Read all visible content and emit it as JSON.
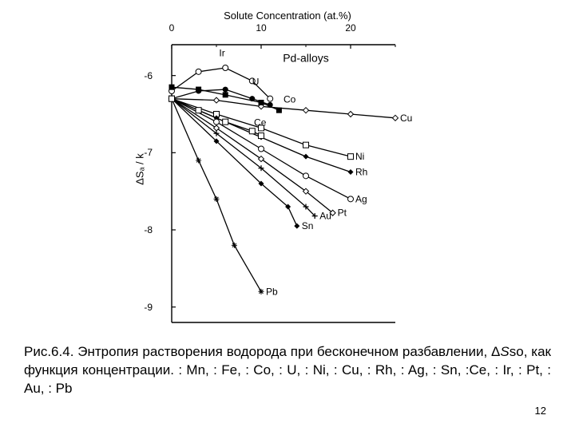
{
  "chart": {
    "type": "line",
    "x_title": "Solute Concentration (at.%)",
    "y_title": "ΔSₐ / k",
    "in_plot_label": "Pd-alloys",
    "xlim": [
      0,
      25
    ],
    "ylim": [
      -9.2,
      -5.6
    ],
    "x_ticks": [
      0,
      10,
      20
    ],
    "y_ticks": [
      -6,
      -7,
      -8,
      -9
    ],
    "background_color": "#ffffff",
    "axis_color": "#000000",
    "line_color": "#000000",
    "line_width": 1.3,
    "tick_len": 5,
    "label_fontsize": 12,
    "title_fontsize": 13,
    "series": [
      {
        "name": "Cu",
        "points": [
          [
            0,
            -6.3
          ],
          [
            5,
            -6.32
          ],
          [
            10,
            -6.4
          ],
          [
            15,
            -6.45
          ],
          [
            20,
            -6.5
          ],
          [
            25,
            -6.55
          ]
        ],
        "marker": "diamond-open",
        "label_right": "Cu"
      },
      {
        "name": "Ni",
        "points": [
          [
            0,
            -6.3
          ],
          [
            5,
            -6.5
          ],
          [
            10,
            -6.68
          ],
          [
            15,
            -6.9
          ],
          [
            20,
            -7.05
          ]
        ],
        "marker": "square-open",
        "label_right": "Ni"
      },
      {
        "name": "Rh",
        "points": [
          [
            0,
            -6.3
          ],
          [
            5,
            -6.55
          ],
          [
            10,
            -6.8
          ],
          [
            15,
            -7.05
          ],
          [
            20,
            -7.25
          ]
        ],
        "marker": "diamond-filled",
        "label_right": "Rh"
      },
      {
        "name": "Ag",
        "points": [
          [
            0,
            -6.3
          ],
          [
            5,
            -6.6
          ],
          [
            10,
            -6.95
          ],
          [
            15,
            -7.3
          ],
          [
            20,
            -7.6
          ]
        ],
        "marker": "circle-open",
        "label_right": "Ag"
      },
      {
        "name": "Pt",
        "points": [
          [
            0,
            -6.3
          ],
          [
            5,
            -6.68
          ],
          [
            10,
            -7.08
          ],
          [
            15,
            -7.5
          ],
          [
            18,
            -7.78
          ]
        ],
        "marker": "diamond-open",
        "label_right": "Pt"
      },
      {
        "name": "Au",
        "points": [
          [
            0,
            -6.3
          ],
          [
            5,
            -6.75
          ],
          [
            10,
            -7.2
          ],
          [
            15,
            -7.7
          ],
          [
            16,
            -7.82
          ]
        ],
        "marker": "plus",
        "label_right": "Au"
      },
      {
        "name": "Sn",
        "points": [
          [
            0,
            -6.3
          ],
          [
            5,
            -6.85
          ],
          [
            10,
            -7.4
          ],
          [
            13,
            -7.7
          ],
          [
            14,
            -7.95
          ]
        ],
        "marker": "diamond-filled",
        "label_right": "Sn"
      },
      {
        "name": "Pb",
        "points": [
          [
            0,
            -6.3
          ],
          [
            3,
            -7.1
          ],
          [
            5,
            -7.6
          ],
          [
            7,
            -8.2
          ],
          [
            10,
            -8.8
          ]
        ],
        "marker": "star-open",
        "label_right": "Pb"
      },
      {
        "name": "Ir",
        "points": [
          [
            0,
            -6.2
          ],
          [
            3,
            -5.95
          ],
          [
            6,
            -5.9
          ],
          [
            9,
            -6.07
          ],
          [
            11,
            -6.3
          ]
        ],
        "marker": "circle-open",
        "label_inline": "Ir",
        "label_pos": [
          5.3,
          -5.75
        ]
      },
      {
        "name": "U",
        "points": [
          [
            0,
            -6.3
          ],
          [
            3,
            -6.2
          ],
          [
            6,
            -6.18
          ],
          [
            9,
            -6.3
          ],
          [
            11,
            -6.38
          ]
        ],
        "marker": "circle-filled",
        "label_inline": "U",
        "label_pos": [
          9.0,
          -6.12
        ]
      },
      {
        "name": "Co",
        "points": [
          [
            0,
            -6.15
          ],
          [
            3,
            -6.18
          ],
          [
            6,
            -6.25
          ],
          [
            10,
            -6.35
          ],
          [
            12,
            -6.45
          ]
        ],
        "marker": "square-filled",
        "label_inline": "Co",
        "label_pos": [
          12.5,
          -6.35
        ]
      },
      {
        "name": "Ce",
        "points": [
          [
            0,
            -6.3
          ],
          [
            3,
            -6.45
          ],
          [
            6,
            -6.6
          ],
          [
            9,
            -6.72
          ],
          [
            10,
            -6.78
          ]
        ],
        "marker": "square-open",
        "label_inline": "Ce",
        "label_pos": [
          9.2,
          -6.65
        ]
      }
    ]
  },
  "caption": {
    "prefix": "Рис.6.4.",
    "body_part1": " Энтропия растворения водорода при бесконечном разбавлении, Δ",
    "S_italic": "S",
    "body_part2": "so, как функция концентрации.   : Mn,   : Fe, : Co,   : U,   : Ni,   : Cu,   : Rh,   : Ag,   : Sn,   :Ce,   : Ir,   : Pt,   : Au,   : Pb"
  },
  "page_number": "12"
}
